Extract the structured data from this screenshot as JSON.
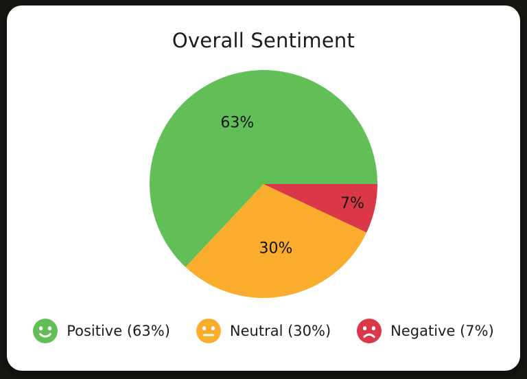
{
  "title": "Overall Sentiment",
  "colors": {
    "background": "#151813",
    "card": "#ffffff",
    "positive": "#62BE57",
    "neutral": "#FAAD2D",
    "negative": "#DA3748",
    "text": "#1a1a1a"
  },
  "chart_data": {
    "type": "pie",
    "title": "Overall Sentiment",
    "categories": [
      "Positive",
      "Neutral",
      "Negative"
    ],
    "values": [
      63,
      30,
      7
    ],
    "unit": "%",
    "colors": [
      "#62BE57",
      "#FAAD2D",
      "#DA3748"
    ],
    "slice_labels": [
      "63%",
      "30%",
      "7%"
    ],
    "start_angle_deg": 0,
    "direction": "counterclockwise",
    "legend_position": "bottom"
  },
  "legend": {
    "items": [
      {
        "label": "Positive (63%)",
        "icon": "smile-face-icon",
        "color": "#62BE57"
      },
      {
        "label": "Neutral (30%)",
        "icon": "neutral-face-icon",
        "color": "#FAAD2D"
      },
      {
        "label": "Negative (7%)",
        "icon": "frown-face-icon",
        "color": "#DA3748"
      }
    ]
  }
}
